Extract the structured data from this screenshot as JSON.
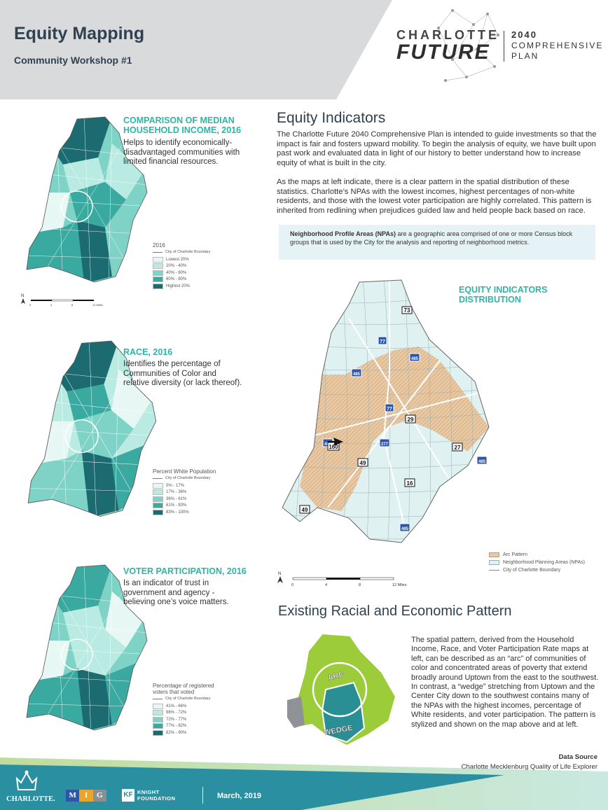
{
  "header": {
    "title": "Equity Mapping",
    "subtitle": "Community Workshop #1",
    "logo": {
      "line1": "CHARLOTTE",
      "line2": "FUTURE",
      "year": "2040",
      "plan_line1": "COMPREHENSIVE",
      "plan_line2": "PLAN"
    }
  },
  "maps": [
    {
      "heading_line1": "COMPARISON OF MEDIAN",
      "heading_line2": "HOUSEHOLD INCOME, 2016",
      "desc_line1": "Helps to identify economically-",
      "desc_line2": "disadvantaged communities with",
      "desc_line3": "limited financial resources.",
      "legend_title": "2016",
      "boundary_label": "City of Charlotte Boundary",
      "legend": [
        {
          "label": "Lowest 20%",
          "color": "#e6f7f4"
        },
        {
          "label": "20% - 40%",
          "color": "#b9ebe2"
        },
        {
          "label": "40% - 60%",
          "color": "#7fd3c6"
        },
        {
          "label": "60% - 80%",
          "color": "#3aa9a0"
        },
        {
          "label": "Highest 20%",
          "color": "#1b6b70"
        }
      ]
    },
    {
      "heading_line1": "RACE, 2016",
      "desc_line1": "Identifies the percentage of",
      "desc_line2": "Communities of Color and",
      "desc_line3": "relative diversity (or lack thereof).",
      "legend_title": "Percent White Population",
      "boundary_label": "City of Charlotte Boundary",
      "legend": [
        {
          "label": "0% - 17%",
          "color": "#e6f7f4"
        },
        {
          "label": "17% - 36%",
          "color": "#b9ebe2"
        },
        {
          "label": "36% - 61%",
          "color": "#7fd3c6"
        },
        {
          "label": "61% - 83%",
          "color": "#3aa9a0"
        },
        {
          "label": "83% - 100%",
          "color": "#1b6b70"
        }
      ]
    },
    {
      "heading_line1": "VOTER PARTICIPATION, 2016",
      "desc_line1": "Is an indicator of trust in",
      "desc_line2": "government and agency -",
      "desc_line3": "believing one’s voice matters.",
      "legend_title_line1": "Percentage of registered",
      "legend_title_line2": "voters that voted",
      "boundary_label": "City of Charlotte Boundary",
      "legend": [
        {
          "label": "41% - 66%",
          "color": "#e6f7f4"
        },
        {
          "label": "66% - 72%",
          "color": "#b9ebe2"
        },
        {
          "label": "72% - 77%",
          "color": "#7fd3c6"
        },
        {
          "label": "77% - 82%",
          "color": "#3aa9a0"
        },
        {
          "label": "82% - 90%",
          "color": "#1b6b70"
        }
      ]
    }
  ],
  "equity": {
    "title": "Equity Indicators",
    "para1": "The Charlotte Future 2040 Comprehensive Plan is intended to guide investments so that the impact is fair and fosters upward mobility. To begin the analysis of equity, we have built upon past work and evaluated data in light of our history to better understand how to increase equity of what is built in the city.",
    "para2": "As the maps at left indicate, there is a clear pattern in the spatial distribution of these statistics. Charlotte’s NPAs with the lowest incomes, highest percentages of non-white residents, and those with the lowest voter participation are highly correlated. This pattern is inherited from redlining when prejudices guided law and held people back based on race.",
    "npa_bold": "Neighborhood Profile Areas (NPAs)",
    "npa_text": " are a geographic area comprised of one or more Census block groups that is used by the City for the analysis and reporting of neighborhood metrics."
  },
  "distribution_map": {
    "heading_line1": "EQUITY INDICATORS",
    "heading_line2": "DISTRIBUTION",
    "legend": [
      {
        "label": "Arc Pattern",
        "color": "#e9c9a3"
      },
      {
        "label": "Neighborhood Planning Areas (NPAs)",
        "color": "#dff1f1"
      },
      {
        "label": "City of Charlotte Boundary",
        "color": "#888888"
      }
    ],
    "scale_labels": [
      "0",
      "4",
      "8",
      "12 Miles"
    ],
    "route_labels": [
      "73",
      "77",
      "485",
      "485",
      "77",
      "29",
      "485",
      "160",
      "277",
      "27",
      "485",
      "49",
      "16",
      "485",
      "49"
    ]
  },
  "small_map_scale": [
    "0",
    "4",
    "8",
    "12 Miles"
  ],
  "small_map_routes": [
    "73",
    "77",
    "485",
    "77",
    "29",
    "160",
    "277",
    "27",
    "485",
    "49",
    "16",
    "485",
    "49"
  ],
  "pattern": {
    "title": "Existing Racial and Economic Pattern",
    "arc_label": "ARC",
    "wedge_label": "WEDGE",
    "para": "The spatial pattern, derived from the Household Income, Race, and Voter Participation Rate maps at left, can be described as an “arc” of communities of color and concentrated areas of poverty that extend broadly around Uptown from the east to the southwest. In contrast, a “wedge” stretching from Uptown and the Center City down to the southwest contains many of the NPAs with the highest incomes, percentage of White residents, and voter participation. The pattern is stylized and shown on the map above and at left."
  },
  "data_source": {
    "label": "Data Source",
    "value": "Charlotte Mecklenburg Quality of Life Explorer"
  },
  "footer": {
    "charlotte": "CHARLOTTE.",
    "mig": [
      "M",
      "I",
      "G"
    ],
    "knight_icon": "KF",
    "knight_line1": "KNIGHT",
    "knight_line2": "FOUNDATION",
    "date": "March, 2019"
  },
  "colors": {
    "teal_heading": "#2db5a6",
    "navy_text": "#2f4150",
    "header_gray": "#d8dadc",
    "footer_teal": "#2a8fa0",
    "arc_green": "#9ccc3a",
    "wedge_teal": "#2a8f95"
  }
}
